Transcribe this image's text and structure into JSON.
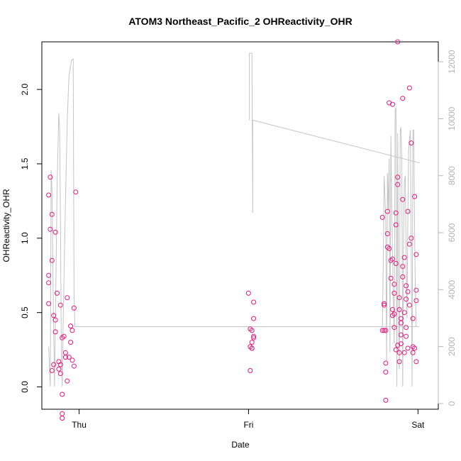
{
  "chart_data": {
    "type": "scatter",
    "title": "ATOM3 Northeast_Pacific_2 OHReactivity_OHR",
    "xlabel": "Date",
    "ylabel": "OHReactivity_OHR",
    "x_ticks": [
      "Thu",
      "Fri",
      "Sat"
    ],
    "x_tick_values": [
      1.0,
      2.0,
      3.0
    ],
    "xlim": [
      0.78,
      3.12
    ],
    "ylim": [
      -0.15,
      2.32
    ],
    "y_ticks": [
      0.0,
      0.5,
      1.0,
      1.5,
      2.0
    ],
    "y_tick_labels": [
      "0.0",
      "0.5",
      "1.0",
      "1.5",
      "2.0"
    ],
    "right_axis": {
      "ylim": [
        -200,
        12700
      ],
      "ticks": [
        0,
        2000,
        4000,
        6000,
        8000,
        10000,
        12000
      ],
      "tick_labels": [
        "0",
        "2000",
        "4000",
        "6000",
        "8000",
        "10000",
        "12000"
      ],
      "color": "#b4b4b4"
    },
    "grid": false,
    "series": [
      {
        "name": "",
        "kind": "points",
        "color": "#e8177e",
        "points": [
          [
            0.82,
            0.56
          ],
          [
            0.82,
            0.7
          ],
          [
            0.82,
            0.75
          ],
          [
            0.82,
            1.29
          ],
          [
            0.83,
            1.06
          ],
          [
            0.83,
            1.41
          ],
          [
            0.84,
            1.16
          ],
          [
            0.84,
            0.85
          ],
          [
            0.84,
            0.11
          ],
          [
            0.85,
            0.48
          ],
          [
            0.85,
            0.15
          ],
          [
            0.86,
            0.37
          ],
          [
            0.86,
            0.45
          ],
          [
            0.86,
            1.04
          ],
          [
            0.87,
            0.63
          ],
          [
            0.88,
            0.17
          ],
          [
            0.88,
            0.12
          ],
          [
            0.89,
            0.55
          ],
          [
            0.89,
            0.15
          ],
          [
            0.89,
            0.09
          ],
          [
            0.9,
            -0.05
          ],
          [
            0.9,
            -0.18
          ],
          [
            0.9,
            -0.21
          ],
          [
            0.9,
            0.33
          ],
          [
            0.91,
            0.34
          ],
          [
            0.92,
            0.2
          ],
          [
            0.92,
            0.23
          ],
          [
            0.93,
            0.6
          ],
          [
            0.93,
            0.04
          ],
          [
            0.94,
            0.2
          ],
          [
            0.95,
            0.3
          ],
          [
            0.95,
            0.41
          ],
          [
            0.96,
            0.38
          ],
          [
            0.96,
            0.18
          ],
          [
            0.97,
            0.14
          ],
          [
            0.97,
            0.53
          ],
          [
            0.98,
            1.31
          ],
          [
            2.0,
            0.63
          ],
          [
            2.01,
            0.39
          ],
          [
            2.01,
            0.27
          ],
          [
            2.01,
            0.11
          ],
          [
            2.02,
            0.26
          ],
          [
            2.02,
            0.26
          ],
          [
            2.02,
            0.3
          ],
          [
            2.02,
            0.38
          ],
          [
            2.03,
            0.57
          ],
          [
            2.03,
            0.46
          ],
          [
            2.03,
            0.34
          ],
          [
            2.03,
            0.33
          ],
          [
            2.79,
            1.14
          ],
          [
            2.79,
            0.38
          ],
          [
            2.8,
            0.56
          ],
          [
            2.8,
            0.55
          ],
          [
            2.8,
            0.38
          ],
          [
            2.81,
            0.16
          ],
          [
            2.81,
            0.1
          ],
          [
            2.81,
            -0.09
          ],
          [
            2.81,
            0.38
          ],
          [
            2.82,
            1.03
          ],
          [
            2.82,
            1.18
          ],
          [
            2.82,
            0.94
          ],
          [
            2.83,
            0.93
          ],
          [
            2.83,
            1.91
          ],
          [
            2.84,
            0.85
          ],
          [
            2.84,
            0.73
          ],
          [
            2.85,
            0.86
          ],
          [
            2.85,
            0.48
          ],
          [
            2.85,
            0.52
          ],
          [
            2.85,
            1.9
          ],
          [
            2.86,
            0.49
          ],
          [
            2.86,
            0.4
          ],
          [
            2.86,
            0.69
          ],
          [
            2.86,
            0.63
          ],
          [
            2.87,
            1.17
          ],
          [
            2.87,
            1.09
          ],
          [
            2.87,
            0.25
          ],
          [
            2.87,
            0.83
          ],
          [
            2.88,
            1.41
          ],
          [
            2.88,
            2.32
          ],
          [
            2.88,
            1.36
          ],
          [
            2.88,
            0.28
          ],
          [
            2.89,
            0.52
          ],
          [
            2.89,
            0.6
          ],
          [
            2.89,
            0.17
          ],
          [
            2.89,
            0.23
          ],
          [
            2.9,
            0.29
          ],
          [
            2.9,
            0.35
          ],
          [
            2.9,
            0.43
          ],
          [
            2.9,
            0.46
          ],
          [
            2.91,
            0.74
          ],
          [
            2.91,
            0.81
          ],
          [
            2.91,
            1.26
          ],
          [
            2.91,
            1.94
          ],
          [
            2.92,
            0.87
          ],
          [
            2.92,
            0.5
          ],
          [
            2.92,
            0.23
          ],
          [
            2.93,
            0.68
          ],
          [
            2.93,
            0.59
          ],
          [
            2.93,
            0.34
          ],
          [
            2.93,
            0.4
          ],
          [
            2.94,
            0.26
          ],
          [
            2.94,
            0.64
          ],
          [
            2.94,
            1.18
          ],
          [
            2.95,
            2.01
          ],
          [
            2.95,
            0.96
          ],
          [
            2.95,
            0.55
          ],
          [
            2.96,
            1.64
          ],
          [
            2.96,
            1.0
          ],
          [
            2.97,
            0.27
          ],
          [
            2.97,
            0.23
          ],
          [
            2.97,
            0.46
          ],
          [
            2.98,
            1.28
          ],
          [
            2.98,
            0.26
          ],
          [
            2.99,
            0.58
          ],
          [
            2.99,
            0.65
          ],
          [
            2.99,
            0.89
          ],
          [
            2.99,
            0.17
          ]
        ]
      },
      {
        "name": "",
        "kind": "line",
        "axis": "right",
        "color": "#c4c4c4",
        "points": [
          [
            0.82,
            2000
          ],
          [
            0.83,
            600
          ],
          [
            0.835,
            8200
          ],
          [
            0.84,
            7500
          ],
          [
            0.845,
            4800
          ],
          [
            0.85,
            2600
          ],
          [
            0.855,
            600
          ],
          [
            0.86,
            2800
          ],
          [
            0.87,
            7600
          ],
          [
            0.88,
            10200
          ],
          [
            0.885,
            9600
          ],
          [
            0.89,
            6300
          ],
          [
            0.895,
            1800
          ],
          [
            0.9,
            600
          ],
          [
            0.905,
            2600
          ],
          [
            0.915,
            5900
          ],
          [
            0.93,
            9900
          ],
          [
            0.94,
            11500
          ],
          [
            0.955,
            12050
          ],
          [
            0.965,
            12100
          ],
          [
            0.97,
            3900
          ],
          [
            0.975,
            2700
          ],
          [
            2.795,
            2700
          ],
          [
            3.005,
            2700
          ]
        ]
      },
      {
        "name": "",
        "kind": "line",
        "axis": "right",
        "color": "#c4c4c4",
        "points": [
          [
            2.005,
            9950
          ],
          [
            2.005,
            12300
          ],
          [
            2.02,
            12300
          ],
          [
            2.025,
            6700
          ],
          [
            2.025,
            9950
          ],
          [
            3.01,
            8450
          ]
        ]
      },
      {
        "name": "",
        "kind": "line",
        "axis": "right",
        "color": "#c4c4c4",
        "points": [
          [
            2.79,
            2700
          ],
          [
            2.795,
            5000
          ],
          [
            2.8,
            8000
          ],
          [
            2.81,
            6500
          ],
          [
            2.815,
            1500
          ],
          [
            2.82,
            8100
          ],
          [
            2.825,
            6800
          ],
          [
            2.83,
            8600
          ],
          [
            2.835,
            1800
          ],
          [
            2.84,
            9400
          ],
          [
            2.845,
            7000
          ],
          [
            2.85,
            5200
          ],
          [
            2.855,
            3500
          ],
          [
            2.86,
            2100
          ],
          [
            2.865,
            10300
          ],
          [
            2.87,
            10400
          ],
          [
            2.875,
            600
          ],
          [
            2.88,
            9500
          ],
          [
            2.885,
            3500
          ],
          [
            2.89,
            1200
          ],
          [
            2.895,
            9600
          ],
          [
            2.9,
            9700
          ],
          [
            2.905,
            8500
          ],
          [
            2.91,
            600
          ],
          [
            2.915,
            5800
          ],
          [
            2.92,
            7800
          ],
          [
            2.925,
            8000
          ],
          [
            2.93,
            5200
          ],
          [
            2.935,
            3000
          ],
          [
            2.94,
            6400
          ],
          [
            2.945,
            8900
          ],
          [
            2.95,
            9300
          ],
          [
            2.955,
            9600
          ],
          [
            2.96,
            5400
          ],
          [
            2.965,
            600
          ],
          [
            2.97,
            9600
          ],
          [
            2.975,
            9600
          ],
          [
            2.98,
            6000
          ],
          [
            2.985,
            3700
          ],
          [
            2.99,
            2700
          ]
        ]
      }
    ]
  }
}
